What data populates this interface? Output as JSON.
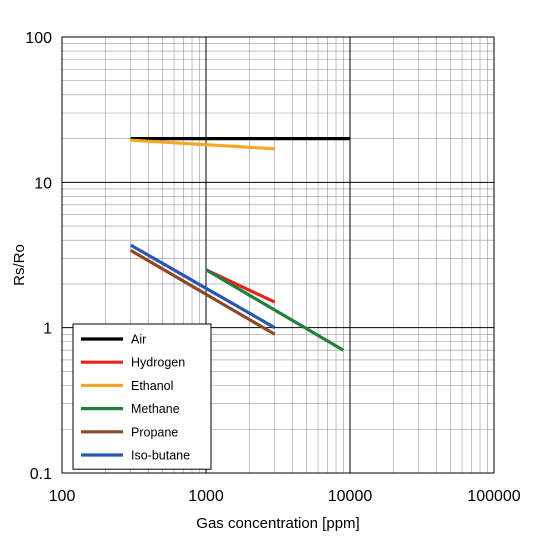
{
  "chart_data": {
    "type": "line",
    "title": "",
    "xlabel": "Gas concentration [ppm]",
    "ylabel": "Rs/Ro",
    "x_scale": "log",
    "y_scale": "log",
    "xlim": [
      100,
      100000
    ],
    "ylim": [
      0.1,
      100
    ],
    "x_ticks": [
      "100",
      "1000",
      "10000",
      "100000"
    ],
    "y_ticks": [
      "0.1",
      "1",
      "10",
      "100"
    ],
    "grid": true,
    "legend_position": "bottom-left",
    "series": [
      {
        "name": "Air",
        "color": "#000000",
        "x": [
          300,
          10000
        ],
        "y": [
          20,
          20
        ]
      },
      {
        "name": "Hydrogen",
        "color": "#e8231c",
        "x": [
          1000,
          3000
        ],
        "y": [
          2.5,
          1.5
        ]
      },
      {
        "name": "Ethanol",
        "color": "#f5a623",
        "x": [
          300,
          3000
        ],
        "y": [
          19.5,
          17
        ]
      },
      {
        "name": "Methane",
        "color": "#22803a",
        "x": [
          1000,
          9000
        ],
        "y": [
          2.5,
          0.7
        ]
      },
      {
        "name": "Propane",
        "color": "#8b4a24",
        "x": [
          300,
          3000
        ],
        "y": [
          3.4,
          0.9
        ]
      },
      {
        "name": "Iso-butane",
        "color": "#2a57b5",
        "x": [
          300,
          3000
        ],
        "y": [
          3.7,
          1.0
        ]
      }
    ]
  }
}
